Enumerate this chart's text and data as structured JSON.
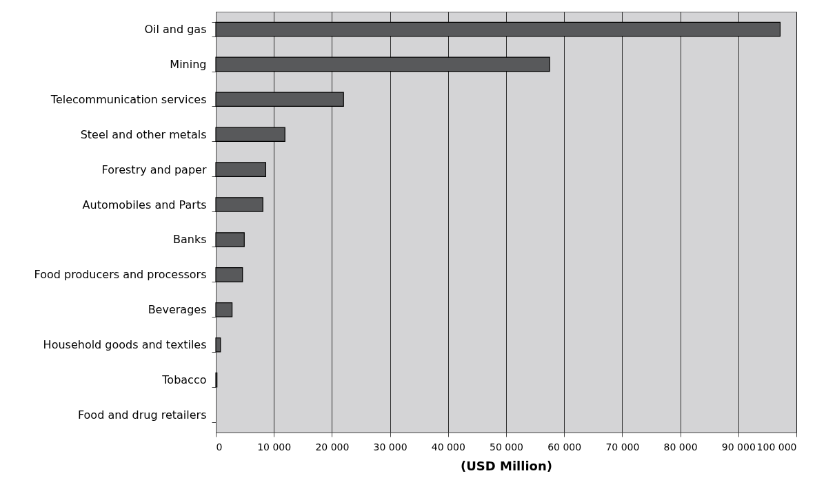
{
  "chart_data": {
    "type": "bar",
    "orientation": "horizontal",
    "xlabel": "(USD Million)",
    "categories": [
      "Oil and gas",
      "Mining",
      "Telecommunication services",
      "Steel and other metals",
      "Forestry and paper",
      "Automobiles and Parts",
      "Banks",
      "Food producers and processors",
      "Beverages",
      "Household goods and textiles",
      "Tobacco",
      "Food and drug retailers"
    ],
    "values": [
      97200,
      57500,
      22000,
      11900,
      8600,
      8100,
      4900,
      4600,
      2800,
      800,
      200,
      0
    ],
    "color": "#58595b",
    "xlim": [
      0,
      100000
    ],
    "xticks": [
      0,
      {
        "value": 10000,
        "label": "10 000"
      },
      {
        "value": 20000,
        "label": "20 000"
      },
      {
        "value": 30000,
        "label": "30 000"
      },
      {
        "value": 40000,
        "label": "40 000"
      },
      {
        "value": 50000,
        "label": "50 000"
      },
      {
        "value": 60000,
        "label": "60 000"
      },
      {
        "value": 70000,
        "label": "70 000"
      },
      {
        "value": 80000,
        "label": "80 000"
      },
      {
        "value": 90000,
        "label": "90 000"
      },
      {
        "value": 100000,
        "label": "100 000"
      }
    ],
    "grid": "x"
  }
}
